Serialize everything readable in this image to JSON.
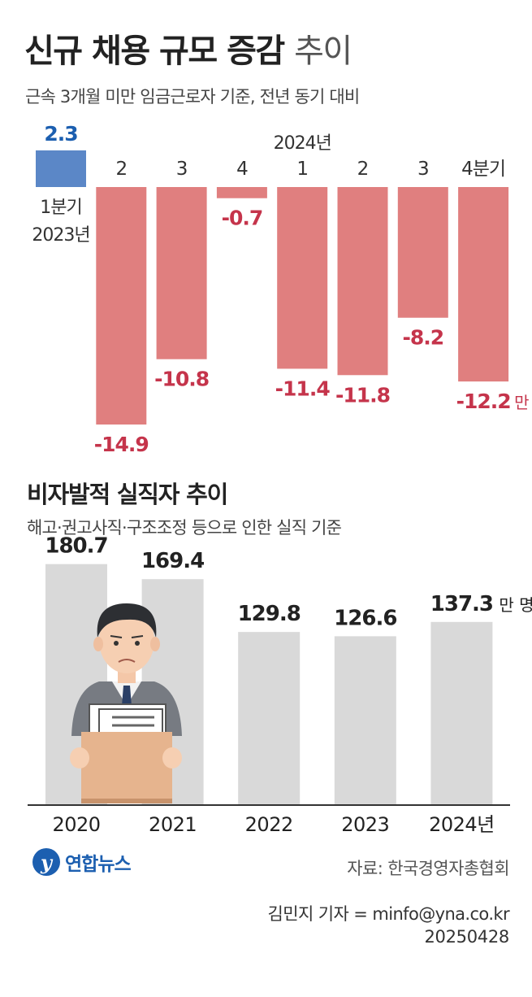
{
  "title": {
    "bold": "신규 채용 규모 증감",
    "light": "추이"
  },
  "subtitle": "근속 3개월 미만 임금근로자 기준, 전년 동기 대비",
  "chart2_title": "비자발적 실직자 추이",
  "chart2_subtitle": "해고·권고사직·구조조정 등으로 인한 실직 기준",
  "logo_text": "연합뉴스",
  "source": "자료: 한국경영자총협회",
  "reporter": "김민지 기자 = minfo@yna.co.kr",
  "date": "20250428",
  "colors": {
    "positive": "#5b87c7",
    "negative": "#e07f7f",
    "negative_label": "#c5344b",
    "positive_label": "#1c5fb0",
    "gray_bar": "#d9d9d9"
  },
  "chart_data": [
    {
      "type": "bar",
      "categories": [
        "1분기",
        "2",
        "3",
        "4",
        "1",
        "2",
        "3",
        "4분기"
      ],
      "year_labels": [
        "2023년",
        "2024년"
      ],
      "values": [
        2.3,
        -14.9,
        -10.8,
        -0.7,
        -11.4,
        -11.8,
        -8.2,
        -12.2
      ],
      "value_labels": [
        "2.3",
        "-14.9",
        "-10.8",
        "-0.7",
        "-11.4",
        "-11.8",
        "-8.2",
        "-12.2"
      ],
      "unit": "만 명"
    },
    {
      "type": "bar",
      "categories": [
        "2020",
        "2021",
        "2022",
        "2023",
        "2024년"
      ],
      "values": [
        180.7,
        169.4,
        129.8,
        126.6,
        137.3
      ],
      "value_labels": [
        "180.7",
        "169.4",
        "129.8",
        "126.6",
        "137.3"
      ],
      "unit": "만 명"
    }
  ]
}
